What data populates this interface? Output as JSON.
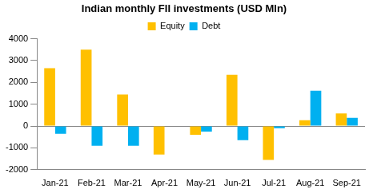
{
  "chart_data": {
    "type": "bar",
    "title": "Indian monthly FII investments (USD Mln)",
    "categories": [
      "Jan-21",
      "Feb-21",
      "Mar-21",
      "Apr-21",
      "May-21",
      "Jun-21",
      "Jul-21",
      "Aug-21",
      "Sep-21"
    ],
    "series": [
      {
        "name": "Equity",
        "color": "#ffc000",
        "values": [
          2650,
          3500,
          1450,
          -1300,
          -400,
          2350,
          -1550,
          270,
          580
        ]
      },
      {
        "name": "Debt",
        "color": "#00b0f0",
        "values": [
          -350,
          -900,
          -900,
          -20,
          -250,
          -650,
          -100,
          1620,
          380
        ]
      }
    ],
    "ylim": [
      -2000,
      4000
    ],
    "yticks": [
      -2000,
      -1000,
      0,
      1000,
      2000,
      3000,
      4000
    ],
    "grid": false,
    "legend": "top"
  }
}
